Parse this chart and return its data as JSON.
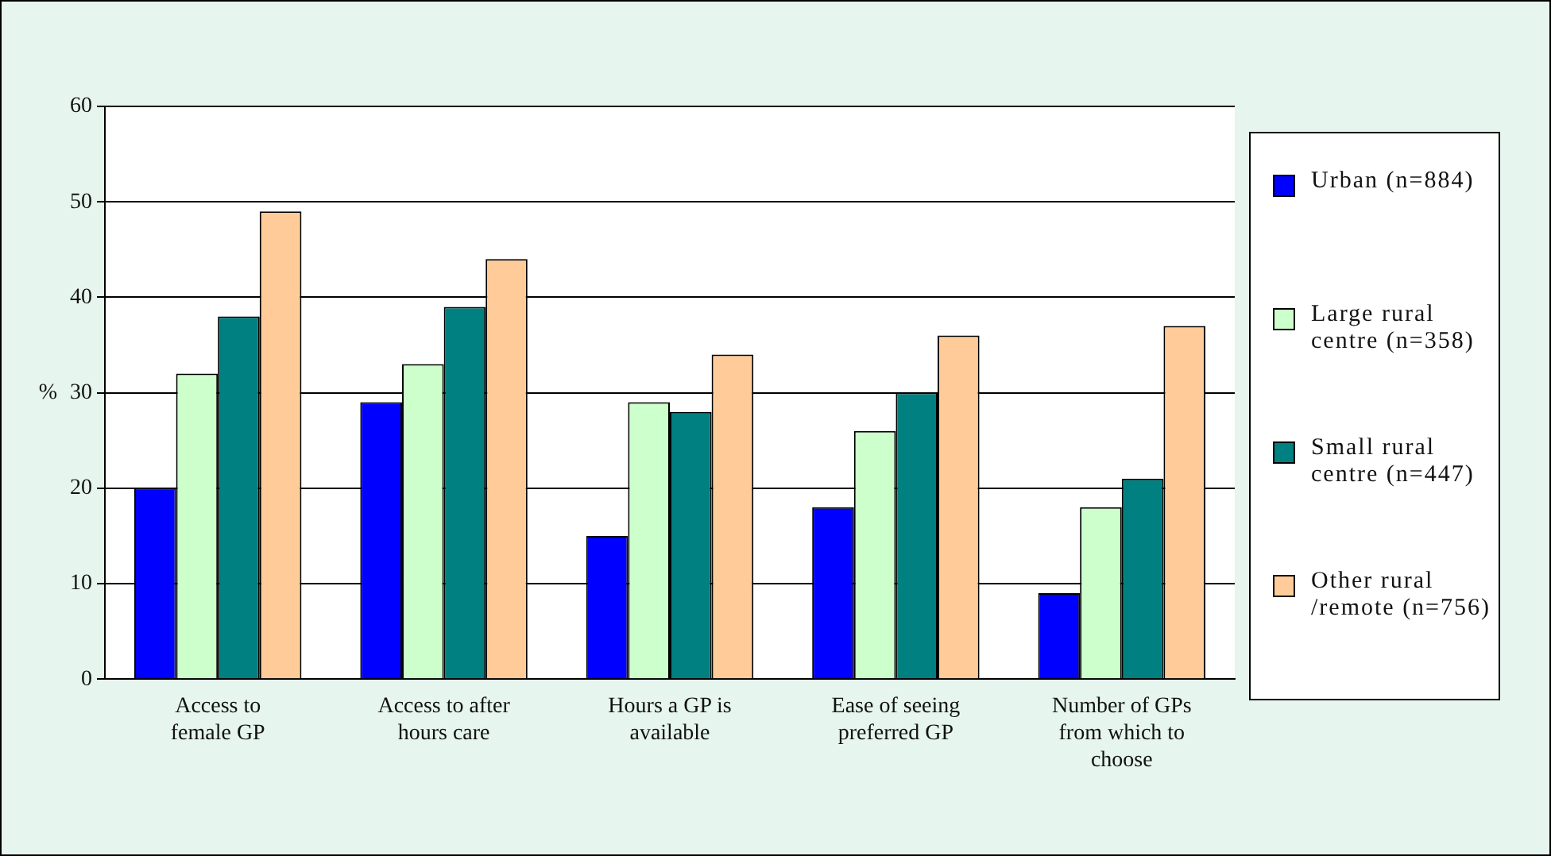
{
  "chart_data": {
    "type": "bar",
    "ylabel": "%",
    "categories": [
      "Access to female GP",
      "Access to after hours care",
      "Hours a GP is available",
      "Ease of seeing preferred GP",
      "Number of GPs from which to choose"
    ],
    "series": [
      {
        "name": "Urban (n=884)",
        "color": "#0000ff",
        "values": [
          20,
          29,
          15,
          18,
          9
        ]
      },
      {
        "name": "Large rural centre (n=358)",
        "color": "#ccffcc",
        "values": [
          32,
          33,
          29,
          26,
          18
        ]
      },
      {
        "name": "Small rural centre (n=447)",
        "color": "#008080",
        "values": [
          38,
          39,
          28,
          30,
          21
        ]
      },
      {
        "name": "Other rural /remote (n=756)",
        "color": "#ffcc99",
        "values": [
          49,
          44,
          34,
          36,
          37
        ]
      }
    ],
    "ylim": [
      0,
      60
    ],
    "yticks": [
      0,
      10,
      20,
      30,
      40,
      50,
      60
    ],
    "grid": "y",
    "legend": "right"
  }
}
